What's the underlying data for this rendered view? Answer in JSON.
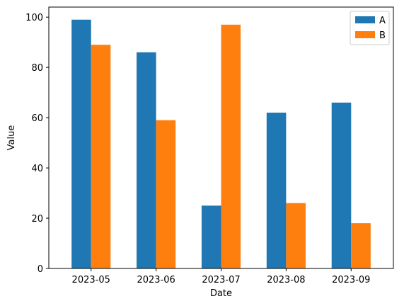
{
  "chart_data": {
    "type": "bar",
    "categories": [
      "2023-05",
      "2023-06",
      "2023-07",
      "2023-08",
      "2023-09"
    ],
    "series": [
      {
        "name": "A",
        "color": "#1f77b4",
        "values": [
          99,
          86,
          25,
          62,
          66
        ]
      },
      {
        "name": "B",
        "color": "#ff7f0e",
        "values": [
          89,
          59,
          97,
          26,
          18
        ]
      }
    ],
    "xlabel": "Date",
    "ylabel": "Value",
    "ylim": [
      0,
      104
    ],
    "yticks": [
      0,
      20,
      40,
      60,
      80,
      100
    ],
    "grid": false,
    "legend": {
      "position": "top-right"
    }
  }
}
